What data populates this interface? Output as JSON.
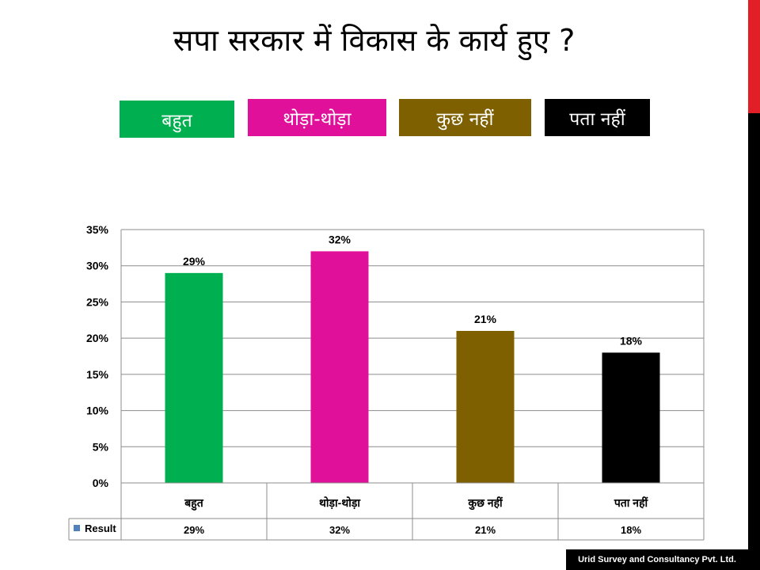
{
  "slide": {
    "title": "सपा सरकार में विकास के कार्य हुए ?",
    "footer": "Urid Survey and Consultancy Pvt. Ltd."
  },
  "legend_boxes": [
    {
      "label": "बहुत",
      "color": "#00b050"
    },
    {
      "label": "थोड़ा-थोड़ा",
      "color": "#e0109a"
    },
    {
      "label": "कुछ नहीं",
      "color": "#7f6000"
    },
    {
      "label": "पता नहीं",
      "color": "#000000"
    }
  ],
  "chart_data": {
    "type": "bar",
    "categories": [
      "बहुत",
      "थोड़ा-थोड़ा",
      "कुछ नहीं",
      "पता नहीं"
    ],
    "series": [
      {
        "name": "Result",
        "values": [
          29,
          32,
          21,
          18
        ],
        "colors": [
          "#00b050",
          "#e0109a",
          "#7f6000",
          "#000000"
        ]
      }
    ],
    "data_labels": [
      "29%",
      "32%",
      "21%",
      "18%"
    ],
    "ylim": [
      0,
      35
    ],
    "yticks": [
      "0%",
      "5%",
      "10%",
      "15%",
      "20%",
      "25%",
      "30%",
      "35%"
    ],
    "grid": true,
    "legend_swatch_color": "#4f81bd",
    "data_table": {
      "row_label": "Result",
      "cells": [
        "29%",
        "32%",
        "21%",
        "18%"
      ]
    }
  }
}
